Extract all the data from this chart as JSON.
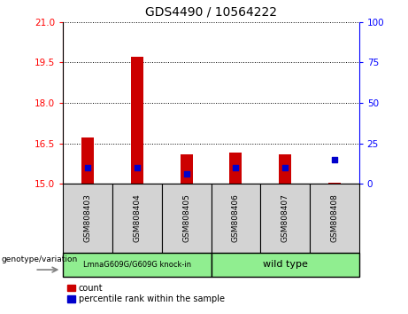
{
  "title": "GDS4490 / 10564222",
  "samples": [
    "GSM808403",
    "GSM808404",
    "GSM808405",
    "GSM808406",
    "GSM808407",
    "GSM808408"
  ],
  "count_values": [
    16.7,
    19.72,
    16.1,
    16.15,
    16.1,
    15.05
  ],
  "percentile_values": [
    10,
    10,
    6,
    10,
    10,
    15
  ],
  "ylim_left": [
    15,
    21
  ],
  "ylim_right": [
    0,
    100
  ],
  "yticks_left": [
    15,
    16.5,
    18,
    19.5,
    21
  ],
  "yticks_right": [
    0,
    25,
    50,
    75,
    100
  ],
  "group1_label": "LmnaG609G/G609G knock-in",
  "group2_label": "wild type",
  "group_bg_color": "#90EE90",
  "sample_bg_color": "#d3d3d3",
  "bar_color": "#cc0000",
  "blue_color": "#0000cc",
  "genotype_label": "genotype/variation",
  "legend_count": "count",
  "legend_pct": "percentile rank within the sample",
  "bar_bottom": 15,
  "blue_size": 18,
  "bar_width": 0.25
}
